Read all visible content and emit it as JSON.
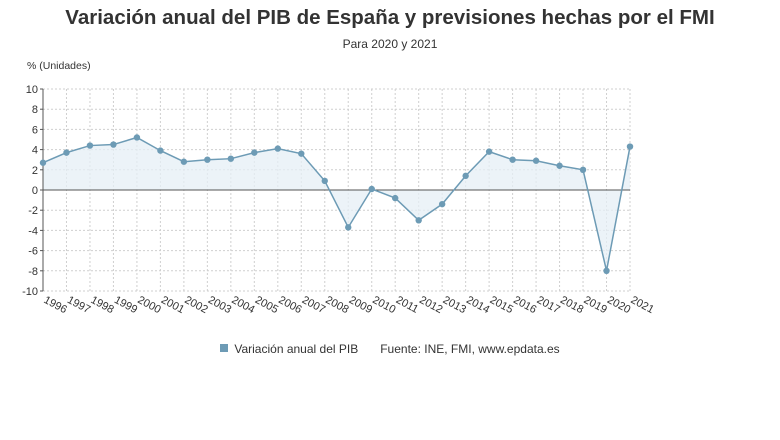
{
  "chart_data": {
    "type": "area",
    "title": "Variación anual del PIB de España y previsiones hechas por el FMI",
    "subtitle": "Para 2020 y 2021",
    "ylabel": "% (Unidades)",
    "xlabel": "",
    "ylim": [
      -10,
      10
    ],
    "yticks": [
      10,
      8,
      6,
      4,
      2,
      0,
      -2,
      -4,
      -6,
      -8,
      -10
    ],
    "categories": [
      "1996",
      "1997",
      "1998",
      "1999",
      "2000",
      "2001",
      "2002",
      "2003",
      "2004",
      "2005",
      "2006",
      "2007",
      "2008",
      "2009",
      "2010",
      "2011",
      "2012",
      "2013",
      "2014",
      "2015",
      "2016",
      "2017",
      "2018",
      "2019",
      "2020",
      "2021"
    ],
    "series": [
      {
        "name": "Variación anual del PIB",
        "values": [
          2.7,
          3.7,
          4.4,
          4.5,
          5.2,
          3.9,
          2.8,
          3.0,
          3.1,
          3.7,
          4.1,
          3.6,
          0.9,
          -3.7,
          0.1,
          -0.8,
          -3.0,
          -1.4,
          1.4,
          3.8,
          3.0,
          2.9,
          2.4,
          2.0,
          -8.0,
          4.3
        ],
        "color": "#6d9bb5"
      }
    ],
    "source": "Fuente: INE, FMI, www.epdata.es",
    "grid": true,
    "legend_position": "bottom"
  }
}
